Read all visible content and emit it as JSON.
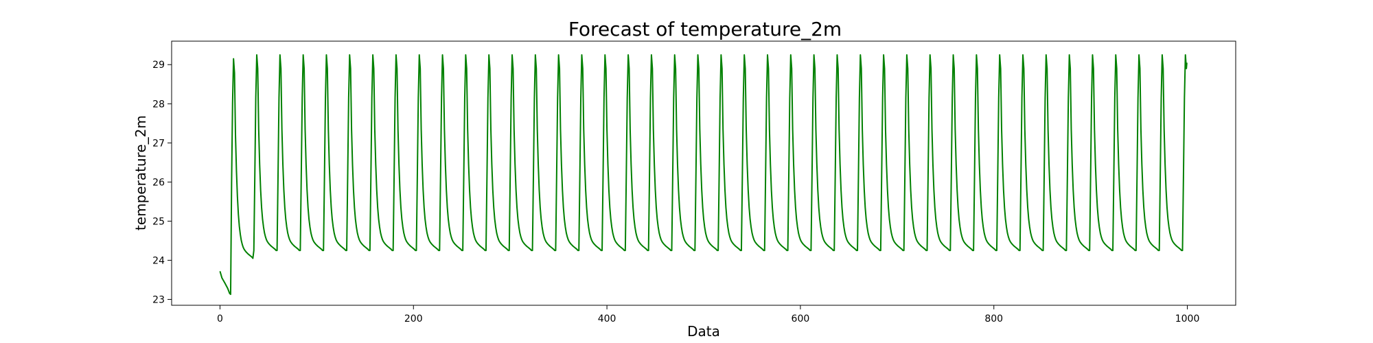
{
  "chart_data": {
    "type": "line",
    "title": "Forecast of temperature_2m",
    "xlabel": "Data",
    "ylabel": "temperature_2m",
    "xlim": [
      -50,
      1050
    ],
    "ylim": [
      22.85,
      29.6
    ],
    "xticks": [
      0,
      200,
      400,
      600,
      800,
      1000
    ],
    "yticks": [
      23,
      24,
      25,
      26,
      27,
      28,
      29
    ],
    "grid": false,
    "series": [
      {
        "color": "#008000",
        "start_segment": [
          [
            0,
            23.72
          ],
          [
            2,
            23.55
          ],
          [
            5,
            23.42
          ],
          [
            8,
            23.28
          ],
          [
            10,
            23.15
          ],
          [
            11,
            23.13
          ]
        ],
        "cycle": {
          "first_x": 11,
          "period": 24,
          "end_x": 999,
          "min": 24.25,
          "max": 29.25,
          "first_peak": 29.15
        }
      }
    ]
  }
}
